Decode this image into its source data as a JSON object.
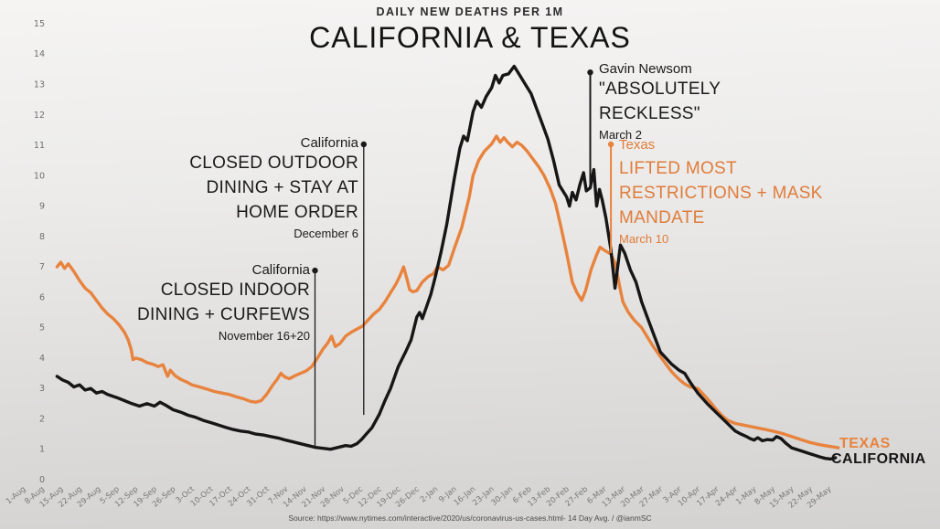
{
  "header": {
    "subtitle": "DAILY NEW DEATHS PER 1M",
    "title": "CALIFORNIA & TEXAS"
  },
  "source": "Source: https://www.nytimes.com/interactive/2020/us/coronavirus-us-cases.html- 14 Day Avg. / @ianmSC",
  "series_labels": {
    "texas": "TEXAS",
    "california": "CALIFORNIA"
  },
  "annotations": {
    "ca_indoor": {
      "who": "California",
      "lines": [
        "CLOSED INDOOR",
        "DINING + CURFEWS"
      ],
      "date": "November 16+20"
    },
    "ca_outdoor": {
      "who": "California",
      "lines": [
        "CLOSED OUTDOOR",
        "DINING + STAY AT",
        "HOME ORDER"
      ],
      "date": "December 6"
    },
    "newsom": {
      "who": "Gavin Newsom",
      "lines": [
        "\"ABSOLUTELY",
        "RECKLESS\""
      ],
      "date": "March 2"
    },
    "tx_lifted": {
      "who": "Texas",
      "lines": [
        "LIFTED MOST",
        "RESTRICTIONS + MASK",
        "MANDATE"
      ],
      "date": "March 10"
    }
  },
  "colors": {
    "california": "#161616",
    "texas": "#e8833d",
    "axis_text": "#787878"
  },
  "chart_data": {
    "type": "line",
    "title": "DAILY NEW DEATHS PER 1M",
    "subtitle": "CALIFORNIA & TEXAS",
    "ylabel": "",
    "xlabel": "",
    "ylim": [
      0,
      15
    ],
    "grid": false,
    "y_ticks": [
      0,
      1,
      2,
      3,
      4,
      5,
      6,
      7,
      8,
      9,
      10,
      11,
      12,
      13,
      14,
      15
    ],
    "x_tick_labels": [
      "1-Aug",
      "8-Aug",
      "15-Aug",
      "22-Aug",
      "29-Aug",
      "5-Sep",
      "12-Sep",
      "19-Sep",
      "26-Sep",
      "3-Oct",
      "10-Oct",
      "17-Oct",
      "24-Oct",
      "31-Oct",
      "7-Nov",
      "14-Nov",
      "21-Nov",
      "28-Nov",
      "5-Dec",
      "12-Dec",
      "19-Dec",
      "26-Dec",
      "2-Jan",
      "9-Jan",
      "16-Jan",
      "23-Jan",
      "30-Jan",
      "6-Feb",
      "13-Feb",
      "20-Feb",
      "27-Feb",
      "6-Mar",
      "13-Mar",
      "20-Mar",
      "27-Mar",
      "3-Apr",
      "10-Apr",
      "17-Apr",
      "24-Apr",
      "1-May",
      "8-May",
      "15-May",
      "22-May",
      "29-May"
    ],
    "series": [
      {
        "name": "TEXAS",
        "color": "#e8833d",
        "points": [
          [
            1.8,
            7.0
          ],
          [
            2.0,
            7.15
          ],
          [
            2.2,
            6.95
          ],
          [
            2.4,
            7.1
          ],
          [
            2.7,
            6.85
          ],
          [
            3.0,
            6.55
          ],
          [
            3.3,
            6.3
          ],
          [
            3.6,
            6.15
          ],
          [
            3.9,
            5.9
          ],
          [
            4.2,
            5.65
          ],
          [
            4.5,
            5.45
          ],
          [
            4.8,
            5.3
          ],
          [
            5.1,
            5.1
          ],
          [
            5.4,
            4.85
          ],
          [
            5.6,
            4.6
          ],
          [
            5.75,
            4.3
          ],
          [
            5.85,
            3.95
          ],
          [
            6.0,
            4.0
          ],
          [
            6.3,
            3.95
          ],
          [
            6.6,
            3.85
          ],
          [
            6.9,
            3.8
          ],
          [
            7.2,
            3.72
          ],
          [
            7.45,
            3.78
          ],
          [
            7.7,
            3.4
          ],
          [
            7.85,
            3.6
          ],
          [
            8.1,
            3.42
          ],
          [
            8.4,
            3.3
          ],
          [
            8.7,
            3.22
          ],
          [
            9.0,
            3.12
          ],
          [
            9.4,
            3.05
          ],
          [
            9.8,
            2.98
          ],
          [
            10.2,
            2.9
          ],
          [
            10.6,
            2.85
          ],
          [
            11.0,
            2.8
          ],
          [
            11.4,
            2.72
          ],
          [
            11.8,
            2.65
          ],
          [
            12.1,
            2.58
          ],
          [
            12.4,
            2.55
          ],
          [
            12.7,
            2.6
          ],
          [
            13.0,
            2.82
          ],
          [
            13.3,
            3.1
          ],
          [
            13.55,
            3.3
          ],
          [
            13.75,
            3.5
          ],
          [
            13.95,
            3.38
          ],
          [
            14.2,
            3.32
          ],
          [
            14.5,
            3.42
          ],
          [
            14.8,
            3.5
          ],
          [
            15.1,
            3.58
          ],
          [
            15.4,
            3.72
          ],
          [
            15.7,
            4.0
          ],
          [
            16.0,
            4.3
          ],
          [
            16.25,
            4.5
          ],
          [
            16.45,
            4.72
          ],
          [
            16.65,
            4.38
          ],
          [
            16.9,
            4.48
          ],
          [
            17.2,
            4.72
          ],
          [
            17.5,
            4.85
          ],
          [
            17.8,
            4.95
          ],
          [
            18.1,
            5.05
          ],
          [
            18.4,
            5.25
          ],
          [
            18.7,
            5.45
          ],
          [
            19.0,
            5.6
          ],
          [
            19.3,
            5.85
          ],
          [
            19.6,
            6.15
          ],
          [
            19.9,
            6.45
          ],
          [
            20.1,
            6.7
          ],
          [
            20.3,
            7.0
          ],
          [
            20.5,
            6.55
          ],
          [
            20.62,
            6.25
          ],
          [
            20.8,
            6.18
          ],
          [
            21.0,
            6.22
          ],
          [
            21.3,
            6.5
          ],
          [
            21.6,
            6.68
          ],
          [
            21.9,
            6.78
          ],
          [
            22.1,
            7.0
          ],
          [
            22.4,
            6.9
          ],
          [
            22.7,
            7.05
          ],
          [
            23.0,
            7.6
          ],
          [
            23.4,
            8.3
          ],
          [
            23.8,
            9.3
          ],
          [
            24.0,
            10.0
          ],
          [
            24.3,
            10.5
          ],
          [
            24.6,
            10.8
          ],
          [
            25.0,
            11.05
          ],
          [
            25.25,
            11.3
          ],
          [
            25.45,
            11.1
          ],
          [
            25.65,
            11.25
          ],
          [
            25.85,
            11.1
          ],
          [
            26.1,
            10.95
          ],
          [
            26.35,
            11.1
          ],
          [
            26.6,
            11.0
          ],
          [
            26.9,
            10.8
          ],
          [
            27.2,
            10.55
          ],
          [
            27.5,
            10.3
          ],
          [
            27.8,
            10.0
          ],
          [
            28.1,
            9.6
          ],
          [
            28.4,
            9.1
          ],
          [
            28.7,
            8.3
          ],
          [
            29.0,
            7.45
          ],
          [
            29.3,
            6.5
          ],
          [
            29.55,
            6.15
          ],
          [
            29.8,
            5.9
          ],
          [
            30.0,
            6.2
          ],
          [
            30.3,
            6.9
          ],
          [
            30.6,
            7.4
          ],
          [
            30.78,
            7.65
          ],
          [
            31.0,
            7.55
          ],
          [
            31.36,
            7.42
          ],
          [
            31.6,
            7.1
          ],
          [
            31.83,
            6.35
          ],
          [
            32.0,
            5.85
          ],
          [
            32.3,
            5.5
          ],
          [
            32.6,
            5.25
          ],
          [
            33.0,
            5.0
          ],
          [
            33.3,
            4.7
          ],
          [
            33.6,
            4.4
          ],
          [
            34.0,
            4.05
          ],
          [
            34.3,
            3.8
          ],
          [
            34.6,
            3.55
          ],
          [
            35.0,
            3.3
          ],
          [
            35.3,
            3.15
          ],
          [
            35.6,
            3.05
          ],
          [
            36.0,
            3.0
          ],
          [
            36.3,
            2.8
          ],
          [
            36.6,
            2.6
          ],
          [
            37.0,
            2.3
          ],
          [
            37.3,
            2.1
          ],
          [
            37.6,
            1.95
          ],
          [
            38.0,
            1.85
          ],
          [
            38.4,
            1.8
          ],
          [
            38.8,
            1.75
          ],
          [
            39.2,
            1.7
          ],
          [
            39.6,
            1.65
          ],
          [
            40.0,
            1.6
          ],
          [
            40.5,
            1.52
          ],
          [
            41.0,
            1.42
          ],
          [
            41.5,
            1.32
          ],
          [
            42.0,
            1.22
          ],
          [
            42.5,
            1.15
          ],
          [
            43.0,
            1.1
          ],
          [
            43.5,
            1.05
          ]
        ]
      },
      {
        "name": "CALIFORNIA",
        "color": "#161616",
        "points": [
          [
            1.8,
            3.4
          ],
          [
            2.1,
            3.28
          ],
          [
            2.4,
            3.2
          ],
          [
            2.7,
            3.05
          ],
          [
            3.0,
            3.12
          ],
          [
            3.3,
            2.95
          ],
          [
            3.6,
            3.0
          ],
          [
            3.9,
            2.85
          ],
          [
            4.2,
            2.9
          ],
          [
            4.5,
            2.8
          ],
          [
            5.0,
            2.7
          ],
          [
            5.4,
            2.6
          ],
          [
            5.8,
            2.5
          ],
          [
            6.2,
            2.42
          ],
          [
            6.6,
            2.5
          ],
          [
            7.0,
            2.42
          ],
          [
            7.3,
            2.55
          ],
          [
            7.6,
            2.45
          ],
          [
            8.0,
            2.3
          ],
          [
            8.4,
            2.22
          ],
          [
            8.8,
            2.12
          ],
          [
            9.2,
            2.05
          ],
          [
            9.6,
            1.95
          ],
          [
            10.0,
            1.88
          ],
          [
            10.4,
            1.8
          ],
          [
            10.8,
            1.72
          ],
          [
            11.2,
            1.65
          ],
          [
            11.6,
            1.6
          ],
          [
            12.0,
            1.57
          ],
          [
            12.4,
            1.5
          ],
          [
            12.8,
            1.47
          ],
          [
            13.2,
            1.42
          ],
          [
            13.6,
            1.37
          ],
          [
            14.0,
            1.3
          ],
          [
            14.4,
            1.24
          ],
          [
            14.8,
            1.18
          ],
          [
            15.2,
            1.12
          ],
          [
            15.6,
            1.06
          ],
          [
            16.0,
            1.03
          ],
          [
            16.4,
            1.0
          ],
          [
            16.8,
            1.06
          ],
          [
            17.2,
            1.12
          ],
          [
            17.5,
            1.1
          ],
          [
            17.8,
            1.18
          ],
          [
            18.05,
            1.32
          ],
          [
            18.3,
            1.5
          ],
          [
            18.6,
            1.7
          ],
          [
            19.0,
            2.15
          ],
          [
            19.3,
            2.6
          ],
          [
            19.6,
            3.0
          ],
          [
            20.0,
            3.7
          ],
          [
            20.4,
            4.2
          ],
          [
            20.7,
            4.6
          ],
          [
            21.0,
            5.35
          ],
          [
            21.15,
            5.5
          ],
          [
            21.3,
            5.3
          ],
          [
            21.5,
            5.65
          ],
          [
            21.75,
            6.1
          ],
          [
            22.0,
            6.7
          ],
          [
            22.3,
            7.5
          ],
          [
            22.6,
            8.4
          ],
          [
            23.0,
            9.9
          ],
          [
            23.3,
            10.9
          ],
          [
            23.5,
            11.3
          ],
          [
            23.7,
            11.15
          ],
          [
            24.0,
            12.1
          ],
          [
            24.2,
            12.45
          ],
          [
            24.45,
            12.25
          ],
          [
            24.7,
            12.6
          ],
          [
            25.0,
            12.9
          ],
          [
            25.2,
            13.3
          ],
          [
            25.4,
            13.05
          ],
          [
            25.6,
            13.3
          ],
          [
            25.9,
            13.35
          ],
          [
            26.2,
            13.6
          ],
          [
            26.5,
            13.3
          ],
          [
            26.8,
            13.0
          ],
          [
            27.1,
            12.7
          ],
          [
            27.4,
            12.2
          ],
          [
            27.7,
            11.7
          ],
          [
            28.0,
            11.2
          ],
          [
            28.3,
            10.5
          ],
          [
            28.6,
            9.7
          ],
          [
            29.0,
            9.3
          ],
          [
            29.15,
            9.0
          ],
          [
            29.3,
            9.45
          ],
          [
            29.5,
            9.2
          ],
          [
            29.7,
            9.7
          ],
          [
            29.9,
            10.1
          ],
          [
            30.05,
            9.5
          ],
          [
            30.26,
            9.6
          ],
          [
            30.45,
            10.2
          ],
          [
            30.6,
            9.0
          ],
          [
            30.75,
            9.55
          ],
          [
            30.9,
            9.2
          ],
          [
            31.1,
            8.6
          ],
          [
            31.35,
            7.6
          ],
          [
            31.58,
            6.3
          ],
          [
            31.87,
            7.72
          ],
          [
            32.1,
            7.45
          ],
          [
            32.4,
            6.9
          ],
          [
            32.7,
            6.5
          ],
          [
            33.0,
            5.85
          ],
          [
            33.3,
            5.35
          ],
          [
            33.6,
            4.85
          ],
          [
            34.0,
            4.2
          ],
          [
            34.3,
            4.0
          ],
          [
            34.6,
            3.8
          ],
          [
            35.0,
            3.6
          ],
          [
            35.3,
            3.5
          ],
          [
            35.6,
            3.2
          ],
          [
            36.0,
            2.85
          ],
          [
            36.5,
            2.5
          ],
          [
            37.0,
            2.2
          ],
          [
            37.5,
            1.9
          ],
          [
            38.0,
            1.6
          ],
          [
            38.3,
            1.5
          ],
          [
            38.6,
            1.42
          ],
          [
            38.8,
            1.35
          ],
          [
            39.0,
            1.3
          ],
          [
            39.2,
            1.38
          ],
          [
            39.45,
            1.28
          ],
          [
            39.7,
            1.32
          ],
          [
            40.0,
            1.3
          ],
          [
            40.2,
            1.42
          ],
          [
            40.45,
            1.35
          ],
          [
            40.7,
            1.2
          ],
          [
            41.0,
            1.05
          ],
          [
            41.5,
            0.95
          ],
          [
            42.0,
            0.85
          ],
          [
            42.5,
            0.75
          ],
          [
            42.8,
            0.7
          ],
          [
            43.1,
            0.68
          ],
          [
            43.35,
            0.72
          ]
        ]
      }
    ],
    "markers": [
      {
        "id": "ca-indoor-marker",
        "week": 15.57,
        "value_top": 6.88,
        "value_bottom": 1.08,
        "color": "#1a1a1a",
        "stroke": 1.3
      },
      {
        "id": "ca-outdoor-marker",
        "week": 18.17,
        "value_top": 11.03,
        "value_bottom": 2.13,
        "color": "#1a1a1a",
        "stroke": 1.3
      },
      {
        "id": "newsom-marker",
        "week": 30.26,
        "value_top": 13.4,
        "value_bottom": 9.56,
        "color": "#1a1a1a",
        "stroke": 2
      },
      {
        "id": "tx-lifted-marker",
        "week": 31.36,
        "value_top": 11.03,
        "value_bottom": 7.45,
        "color": "#e8833d",
        "stroke": 2
      }
    ],
    "legend_position": "end-of-line"
  }
}
